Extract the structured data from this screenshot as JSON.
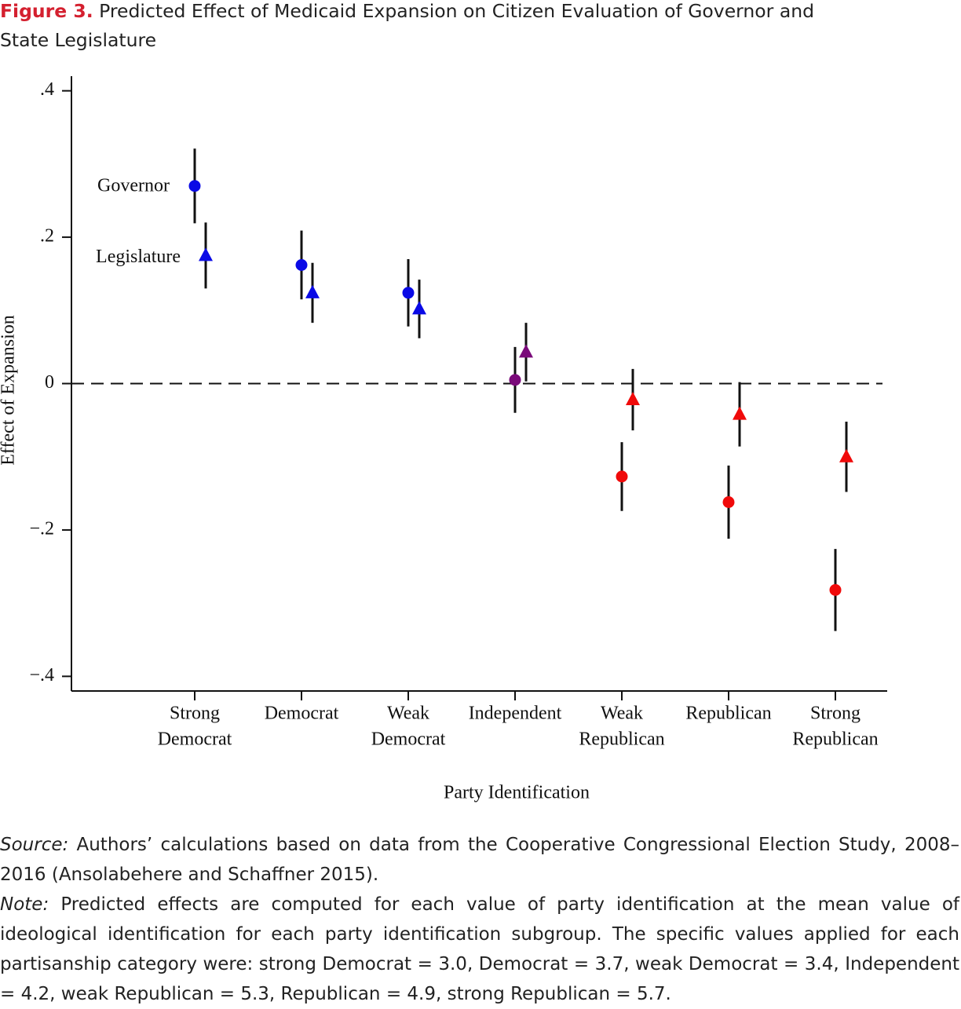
{
  "figure_label": "Figure 3.",
  "chart_data": {
    "type": "errorbar",
    "title": "Predicted Effect of Medicaid Expansion on Citizen Evaluation of Governor and State Legislature",
    "x_label": "Party Identification",
    "y_label": "Effect of Expansion",
    "categories": [
      [
        "Strong",
        "Democrat"
      ],
      [
        "Democrat"
      ],
      [
        "Weak",
        "Democrat"
      ],
      [
        "Independent"
      ],
      [
        "Weak",
        "Republican"
      ],
      [
        "Republican"
      ],
      [
        "Strong",
        "Republican"
      ]
    ],
    "series": [
      {
        "name": "Governor",
        "marker": "circle",
        "colors": [
          "#0a0ae6",
          "#0a0ae6",
          "#0a0ae6",
          "#7a0a7a",
          "#f00a0a",
          "#f00a0a",
          "#f00a0a"
        ],
        "values": [
          0.27,
          0.162,
          0.124,
          0.005,
          -0.127,
          -0.162,
          -0.282
        ],
        "errors": [
          0.051,
          0.047,
          0.046,
          0.045,
          0.047,
          0.05,
          0.056
        ]
      },
      {
        "name": "Legislature",
        "marker": "triangle",
        "colors": [
          "#0a0ae6",
          "#0a0ae6",
          "#0a0ae6",
          "#7a0a7a",
          "#f00a0a",
          "#f00a0a",
          "#f00a0a"
        ],
        "values": [
          0.175,
          0.124,
          0.102,
          0.043,
          -0.022,
          -0.042,
          -0.1
        ],
        "errors": [
          0.045,
          0.041,
          0.04,
          0.04,
          0.042,
          0.044,
          0.048
        ]
      }
    ],
    "ylim": [
      -0.42,
      0.42
    ],
    "yticks": [
      {
        "value": -0.4,
        "label": "−.4"
      },
      {
        "value": -0.2,
        "label": "−.2"
      },
      0,
      {
        "value": 0.2,
        "label": ".2"
      },
      {
        "value": 0.4,
        "label": ".4"
      }
    ],
    "reference_line": 0,
    "grid": false
  },
  "source": {
    "label": "Source:",
    "text": "Authors’ calculations based on data from the Cooperative Congressional Election Study, 2008–2016 (Ansolabehere and Schaffner 2015)."
  },
  "note": {
    "label": "Note:",
    "text": "Predicted effects are computed for each value of party identification at the mean value of ideological identification for each party identification subgroup. The specific values applied for each partisanship category were: strong Democrat = 3.0, Democrat = 3.7, weak Democrat = 3.4, Independent = 4.2, weak Republican = 5.3, Republican = 4.9, strong Republican = 5.7."
  }
}
